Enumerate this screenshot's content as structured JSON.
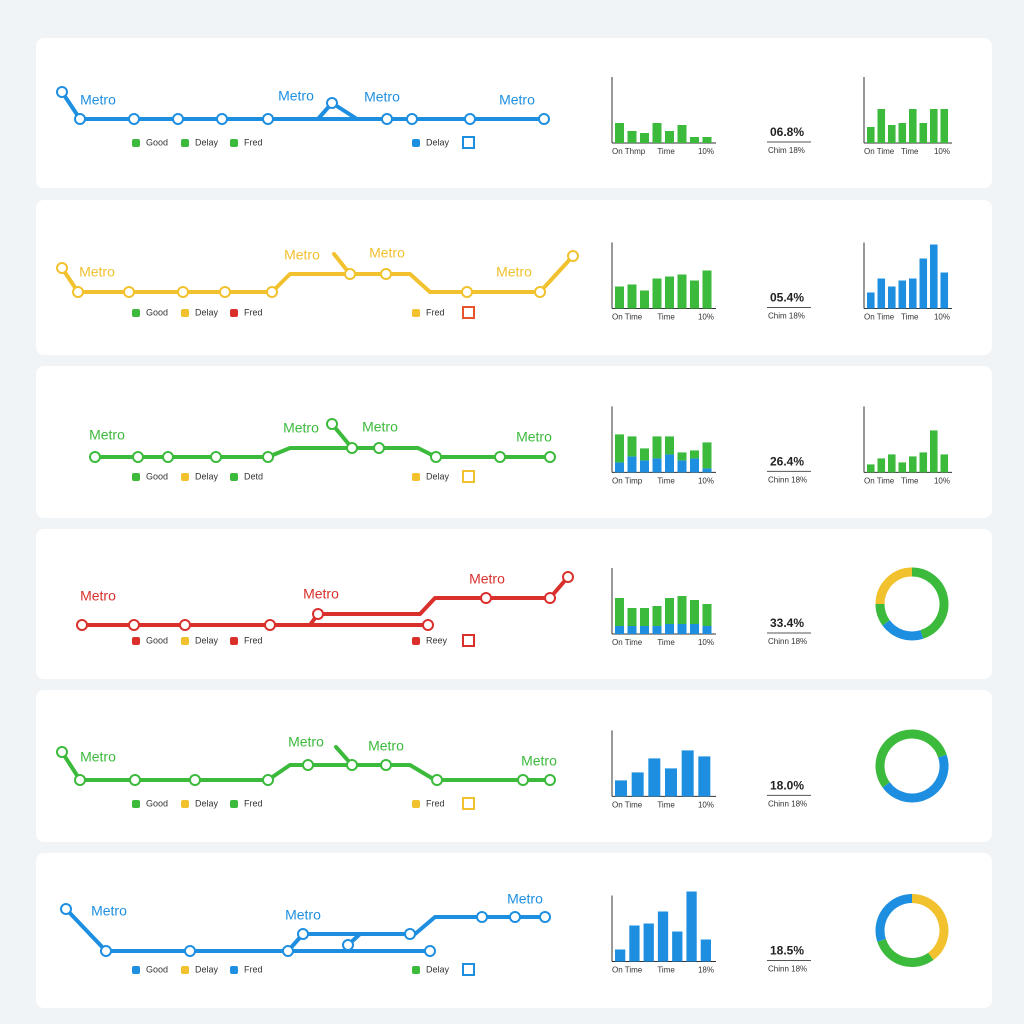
{
  "rows": [
    {
      "line_color": "#1e8fe0",
      "metro_labels": [
        "Metro",
        "Metro",
        "Metro",
        "Metro"
      ],
      "legend": [
        {
          "label": "Good",
          "color": "#3cba3c"
        },
        {
          "label": "Delay",
          "color": "#3cba3c"
        },
        {
          "label": "Fred",
          "color": "#3cba3c"
        }
      ],
      "legend_right": {
        "label": "Delay",
        "color": "#1e8fe0",
        "box_color": "#1e8fe0"
      },
      "chart1": {
        "type": "bar",
        "series": [
          {
            "color": "#3cba3c",
            "values": [
              20,
              12,
              10,
              20,
              12,
              18,
              6,
              6
            ]
          }
        ],
        "labels": [
          "On Thmp",
          "Time",
          "10%"
        ]
      },
      "stat": {
        "value": "06.8%",
        "caption": "Chim 18%"
      },
      "chart2": {
        "type": "bar",
        "series": [
          {
            "color": "#3cba3c",
            "values": [
              16,
              34,
              18,
              20,
              34,
              20,
              34,
              34
            ]
          }
        ],
        "labels": [
          "On Time",
          "Time",
          "10%"
        ]
      }
    },
    {
      "line_color": "#f2c12e",
      "metro_labels": [
        "Metro",
        "Metro",
        "Metro",
        "Metro"
      ],
      "legend": [
        {
          "label": "Good",
          "color": "#3cba3c"
        },
        {
          "label": "Delay",
          "color": "#f2c12e"
        },
        {
          "label": "Fred",
          "color": "#d9302c"
        }
      ],
      "legend_right": {
        "label": "Fred",
        "color": "#f2c12e",
        "box_color": "#e8542c"
      },
      "chart1": {
        "type": "bar",
        "series": [
          {
            "color": "#3cba3c",
            "values": [
              22,
              24,
              18,
              30,
              32,
              34,
              28,
              38
            ]
          }
        ],
        "labels": [
          "On Time",
          "Time",
          "10%"
        ]
      },
      "stat": {
        "value": "05.4%",
        "caption": "Chim 18%"
      },
      "chart2": {
        "type": "bar",
        "series": [
          {
            "color": "#1e8fe0",
            "values": [
              16,
              30,
              22,
              28,
              30,
              50,
              64,
              36
            ]
          }
        ],
        "labels": [
          "On Time",
          "Time",
          "10%"
        ]
      }
    },
    {
      "line_color": "#3cba3c",
      "metro_labels": [
        "Metro",
        "Metro",
        "Metro",
        "Metro"
      ],
      "legend": [
        {
          "label": "Good",
          "color": "#3cba3c"
        },
        {
          "label": "Delay",
          "color": "#f2c12e"
        },
        {
          "label": "Detd",
          "color": "#3cba3c"
        }
      ],
      "legend_right": {
        "label": "Delay",
        "color": "#f2c12e",
        "box_color": "#f2c12e"
      },
      "chart1": {
        "type": "bar",
        "series": [
          {
            "color": "#1e8fe0",
            "values": [
              10,
              16,
              12,
              14,
              18,
              12,
              14,
              4
            ]
          },
          {
            "color": "#3cba3c",
            "values": [
              28,
              20,
              12,
              22,
              18,
              8,
              8,
              26
            ]
          }
        ],
        "labels": [
          "On Timp",
          "Time",
          "10%"
        ]
      },
      "stat": {
        "value": "26.4%",
        "caption": "Chinn 18%"
      },
      "chart2": {
        "type": "bar",
        "series": [
          {
            "color": "#3cba3c",
            "values": [
              8,
              14,
              18,
              10,
              16,
              20,
              42,
              18
            ]
          }
        ],
        "labels": [
          "On Time",
          "Time",
          "10%"
        ]
      }
    },
    {
      "line_color": "#d9302c",
      "metro_labels": [
        "Metro",
        "Metro",
        "Metro"
      ],
      "legend": [
        {
          "label": "Good",
          "color": "#d9302c"
        },
        {
          "label": "Delay",
          "color": "#f2c12e"
        },
        {
          "label": "Fred",
          "color": "#d9302c"
        }
      ],
      "legend_right": {
        "label": "Reey",
        "color": "#d9302c",
        "box_color": "#d9302c"
      },
      "chart1": {
        "type": "bar",
        "series": [
          {
            "color": "#1e8fe0",
            "values": [
              8,
              8,
              8,
              8,
              10,
              10,
              10,
              8
            ]
          },
          {
            "color": "#3cba3c",
            "values": [
              28,
              18,
              18,
              20,
              26,
              28,
              24,
              22
            ]
          }
        ],
        "labels": [
          "On Time",
          "Time",
          "10%"
        ]
      },
      "stat": {
        "value": "33.4%",
        "caption": "Chinn 18%"
      },
      "chart2": {
        "type": "donut",
        "values": [
          45,
          20,
          10,
          25
        ],
        "colors": [
          "#3cba3c",
          "#1e8fe0",
          "#3cba3c",
          "#f2c12e"
        ]
      }
    },
    {
      "line_color": "#3cba3c",
      "metro_labels": [
        "Metro",
        "Metro",
        "Metro",
        "Metro"
      ],
      "legend": [
        {
          "label": "Good",
          "color": "#3cba3c"
        },
        {
          "label": "Delay",
          "color": "#f2c12e"
        },
        {
          "label": "Fred",
          "color": "#3cba3c"
        }
      ],
      "legend_right": {
        "label": "Fred",
        "color": "#f2c12e",
        "box_color": "#f2c12e"
      },
      "chart1": {
        "type": "bar",
        "series": [
          {
            "color": "#1e8fe0",
            "values": [
              16,
              24,
              38,
              28,
              46,
              40
            ]
          }
        ],
        "labels": [
          "On Time",
          "Time",
          "10%"
        ]
      },
      "stat": {
        "value": "18.0%",
        "caption": "Chinn 18%"
      },
      "chart2": {
        "type": "donut",
        "values": [
          20,
          45,
          35
        ],
        "colors": [
          "#3cba3c",
          "#1e8fe0",
          "#3cba3c"
        ]
      }
    },
    {
      "line_color": "#1e8fe0",
      "metro_labels": [
        "Metro",
        "Metro",
        "Metro"
      ],
      "legend": [
        {
          "label": "Good",
          "color": "#1e8fe0"
        },
        {
          "label": "Delay",
          "color": "#f2c12e"
        },
        {
          "label": "Fred",
          "color": "#1e8fe0"
        }
      ],
      "legend_right": {
        "label": "Delay",
        "color": "#3cba3c",
        "box_color": "#1e8fe0"
      },
      "chart1": {
        "type": "bar",
        "series": [
          {
            "color": "#1e8fe0",
            "values": [
              12,
              36,
              38,
              50,
              30,
              70,
              22
            ]
          }
        ],
        "labels": [
          "On Time",
          "Time",
          "18%"
        ]
      },
      "stat": {
        "value": "18.5%",
        "caption": "Chinn 18%"
      },
      "chart2": {
        "type": "donut",
        "values": [
          40,
          30,
          30
        ],
        "colors": [
          "#f2c12e",
          "#3cba3c",
          "#1e8fe0"
        ]
      }
    }
  ]
}
